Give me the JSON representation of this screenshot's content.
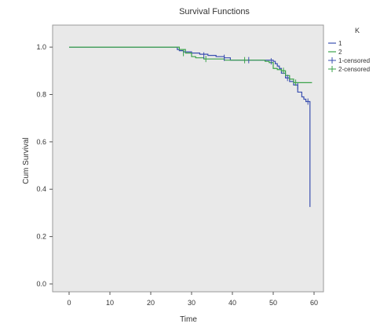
{
  "chart_data": {
    "type": "line",
    "title": "Survival Functions",
    "xlabel": "Time",
    "ylabel": "Cum Survival",
    "xlim": [
      0,
      60
    ],
    "ylim": [
      0.0,
      1.05
    ],
    "x_ticks": [
      0,
      10,
      20,
      30,
      40,
      50,
      60
    ],
    "y_ticks": [
      0.0,
      0.2,
      0.4,
      0.6,
      0.8,
      1.0
    ],
    "x_tick_labels": [
      "0",
      "10",
      "20",
      "30",
      "40",
      "50",
      "60"
    ],
    "y_tick_labels": [
      "0.0",
      "0.2",
      "0.4",
      "0.6",
      "0.8",
      "1.0"
    ],
    "grid": false,
    "legend": {
      "title": "K",
      "placement": "right",
      "entries": [
        {
          "label": "1",
          "color": "#3a4fb0"
        },
        {
          "label": "2",
          "color": "#3aa24a"
        },
        {
          "label": "1-censored",
          "color": "#3a4fb0"
        },
        {
          "label": "2-censored",
          "color": "#3aa24a"
        }
      ]
    },
    "series": [
      {
        "name": "1",
        "color": "#3a4fb0",
        "x": [
          0,
          25.5,
          26.5,
          27.0,
          28.0,
          30.0,
          32.0,
          34.0,
          36.0,
          38.0,
          39.5,
          45.0,
          48.0,
          50.0,
          50.5,
          51.0,
          51.5,
          52.0,
          53.0,
          54.0,
          55.0,
          56.0,
          57.0,
          57.5,
          58.0,
          59.0
        ],
        "y": [
          1.0,
          1.0,
          0.99,
          0.985,
          0.98,
          0.975,
          0.97,
          0.965,
          0.96,
          0.955,
          0.945,
          0.945,
          0.945,
          0.94,
          0.93,
          0.92,
          0.91,
          0.89,
          0.87,
          0.855,
          0.84,
          0.81,
          0.79,
          0.78,
          0.77,
          0.325
        ]
      },
      {
        "name": "2",
        "color": "#3aa24a",
        "x": [
          0,
          25.5,
          27.0,
          28.5,
          30.0,
          31.0,
          33.0,
          38.0,
          42.0,
          46.0,
          48.0,
          49.0,
          50.0,
          51.0,
          52.0,
          53.0,
          54.0,
          55.0,
          59.5
        ],
        "y": [
          1.0,
          1.0,
          0.99,
          0.975,
          0.96,
          0.955,
          0.95,
          0.945,
          0.945,
          0.945,
          0.94,
          0.935,
          0.91,
          0.905,
          0.9,
          0.88,
          0.865,
          0.85,
          0.85
        ]
      }
    ],
    "censored": [
      {
        "series": "1",
        "x": [
          33,
          38,
          44,
          49.5,
          53.5,
          56,
          58.5
        ],
        "y": [
          0.965,
          0.955,
          0.945,
          0.94,
          0.87,
          0.835,
          0.77
        ]
      },
      {
        "series": "2",
        "x": [
          28,
          33.5,
          43,
          52.5,
          55.5
        ],
        "y": [
          0.975,
          0.95,
          0.945,
          0.9,
          0.85
        ]
      }
    ]
  }
}
